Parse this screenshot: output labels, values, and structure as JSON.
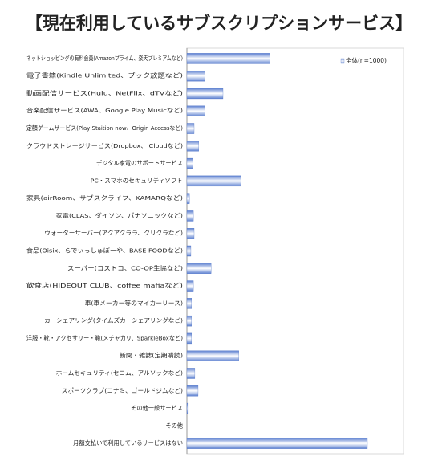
{
  "chart_data": {
    "type": "barh",
    "title": "【現在利用しているサブスクリプションサービス】",
    "categories": [
      "ネットショッピングの有料会員(Amazonプライム、楽天プレミアムなど)",
      "電子書籍(Kindle Unlimited、ブック放題など)",
      "動画配信サービス(Hulu、NetFlix、dTVなど)",
      "音楽配信サービス(AWA、Google Play Musicなど)",
      "定額ゲームサービス(Play Staition now、Origin Accessなど)",
      "クラウドストレージサービス(Dropbox、iCloudなど)",
      "デジタル家電のサポートサービス",
      "PC・スマホのセキュリティソフト",
      "家具(airRoom、サブスクライフ、KAMARQなど)",
      "家電(CLAS、ダイソン、パナソニックなど)",
      "ウォーターサーバー(アクアクララ、クリクラなど)",
      "食品(Oisix、らでぃっしゅぼーや、BASE FOODなど)",
      "スーパー(コストコ、CO-OP生協など)",
      "飲食店(HIDEOUT CLUB、coffee mafiaなど)",
      "車(車メーカー等のマイカーリース)",
      "カーシェアリング(タイムズカーシェアリングなど)",
      "洋服・靴・アクセサリー・鞄(メチャカリ、SparkleBoxなど)",
      "新聞・雑誌(定期購読)",
      "ホームセキュリティ(セコム、アルソックなど)",
      "スポーツクラブ(コナミ、ゴールドジムなど)",
      "その他一般サービス",
      "その他",
      "月額支払いで利用しているサービスはない"
    ],
    "series": [
      {
        "name": "全体(n=1000)",
        "color": "#4a6fc4",
        "values": [
          23,
          5,
          10,
          5,
          2,
          3.3,
          1.6,
          15,
          0.7,
          1.8,
          2,
          1.1,
          6.7,
          1.8,
          1.3,
          1.3,
          1.3,
          14.4,
          2.2,
          3.1,
          0.2,
          0,
          50
        ]
      }
    ],
    "xlim": [
      0,
      60
    ],
    "legend": "upper right"
  }
}
